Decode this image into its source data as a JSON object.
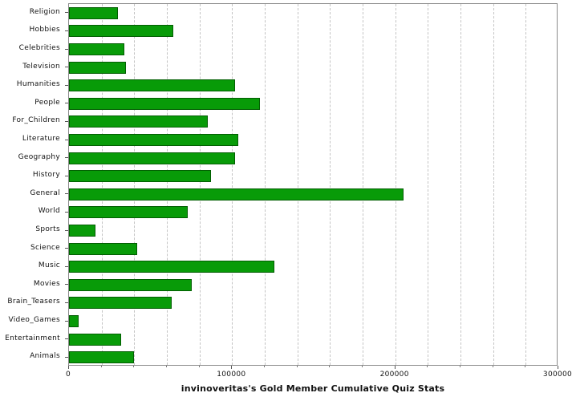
{
  "chart_data": {
    "type": "bar",
    "orientation": "horizontal",
    "title": "invinoveritas's Gold Member Cumulative Quiz Stats",
    "categories": [
      "Religion",
      "Hobbies",
      "Celebrities",
      "Television",
      "Humanities",
      "People",
      "For_Children",
      "Literature",
      "Geography",
      "History",
      "General",
      "World",
      "Sports",
      "Science",
      "Music",
      "Movies",
      "Brain_Teasers",
      "Video_Games",
      "Entertainment",
      "Animals"
    ],
    "values": [
      30000,
      64000,
      34000,
      35000,
      102000,
      117000,
      85000,
      104000,
      102000,
      87000,
      205000,
      73000,
      16000,
      42000,
      126000,
      75000,
      63000,
      6000,
      32000,
      40000
    ],
    "xlim": [
      0,
      300000
    ],
    "xticks": [
      0,
      100000,
      200000,
      300000
    ],
    "xtick_labels": [
      "0",
      "100000",
      "200000",
      "300000"
    ],
    "gridline_interval": 20000,
    "grid": true,
    "legend": "none",
    "bar_color": "#089b08",
    "bar_border_color": "#025e02",
    "xlabel": "",
    "ylabel": ""
  }
}
